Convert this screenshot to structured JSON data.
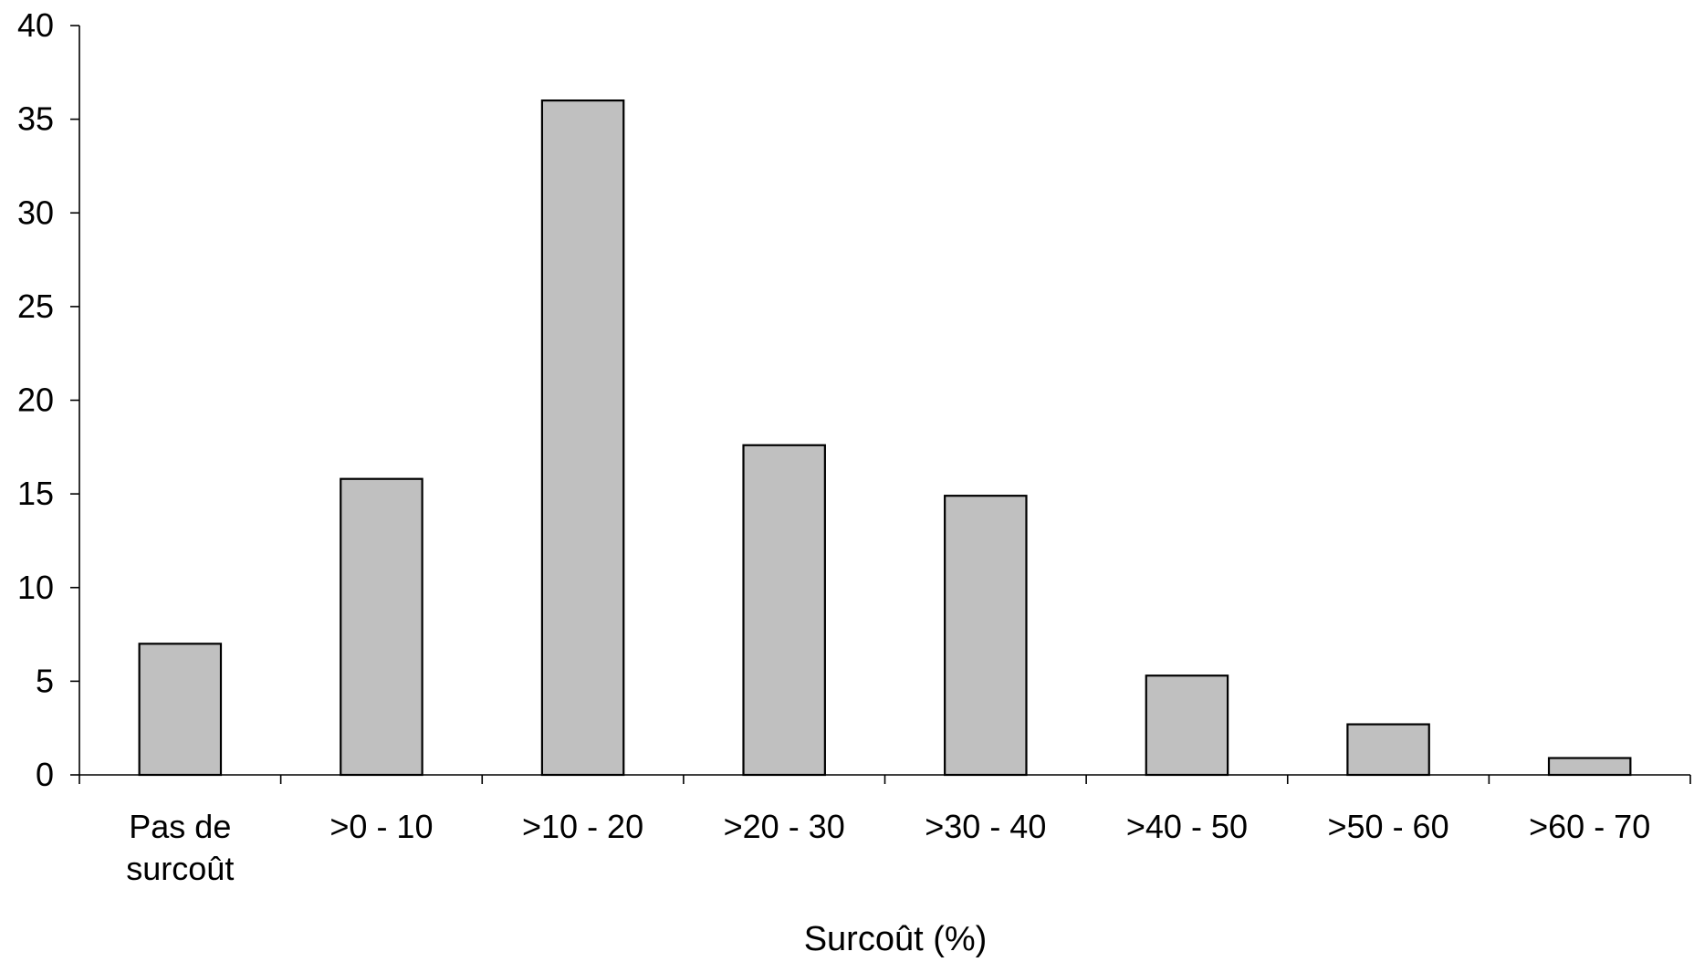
{
  "chart_data": {
    "type": "bar",
    "title": "",
    "xlabel": "Surcoût (%)",
    "ylabel": "",
    "categories": [
      [
        "Pas de",
        "surcoût"
      ],
      [
        ">0 - 10"
      ],
      [
        ">10 - 20"
      ],
      [
        ">20 - 30"
      ],
      [
        ">30 - 40"
      ],
      [
        ">40 - 50"
      ],
      [
        ">50 - 60"
      ],
      [
        ">60 - 70"
      ]
    ],
    "values": [
      7.0,
      15.8,
      36.0,
      17.6,
      14.9,
      5.3,
      2.7,
      0.9
    ],
    "ylim": [
      0,
      40
    ],
    "yticks": [
      0,
      5,
      10,
      15,
      20,
      25,
      30,
      35,
      40
    ],
    "grid": false,
    "legend": "none",
    "colors": {
      "bar_fill": "#c0c0c0",
      "bar_stroke": "#000000",
      "axis": "#000000"
    }
  }
}
